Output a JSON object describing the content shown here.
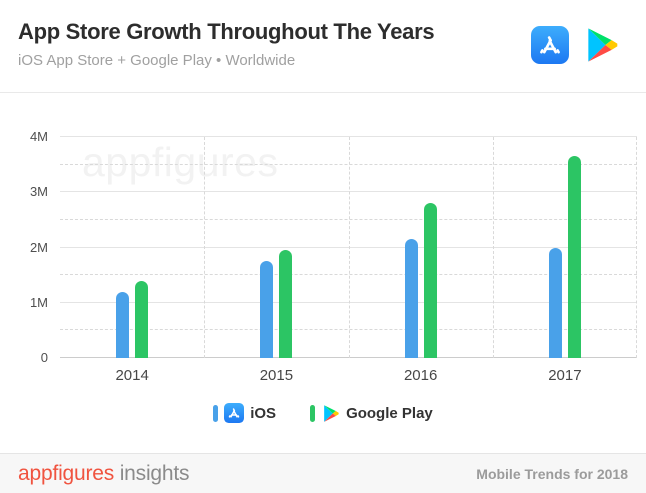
{
  "header": {
    "title": "App Store Growth Throughout The Years",
    "subtitle": "iOS App Store + Google Play • Worldwide",
    "icons": [
      "app-store-icon",
      "google-play-icon"
    ]
  },
  "chart_data": {
    "type": "bar",
    "title": "App Store Growth Throughout The Years",
    "subtitle": "iOS App Store + Google Play • Worldwide",
    "unit": "number of apps (millions)",
    "categories": [
      "2014",
      "2015",
      "2016",
      "2017"
    ],
    "series": [
      {
        "name": "iOS",
        "icon": "app-store-icon",
        "color": "#49a1e9",
        "values_millions": [
          1.2,
          1.75,
          2.15,
          2.0
        ]
      },
      {
        "name": "Google Play",
        "icon": "google-play-icon",
        "color": "#2cc564",
        "values_millions": [
          1.4,
          1.95,
          2.8,
          3.65
        ]
      }
    ],
    "ylim_millions": [
      0,
      4
    ],
    "y_tick_labels": [
      "0",
      "1M",
      "2M",
      "3M",
      "4M"
    ],
    "minor_step": 0.5,
    "grid": {
      "horizontal_major": "solid",
      "horizontal_minor": "dashed",
      "vertical_group_separators": "dashed"
    },
    "legend_position": "bottom-center",
    "watermark": "appfigures"
  },
  "footer": {
    "brand_primary": "appfigures",
    "brand_secondary": "insights",
    "right_text": "Mobile Trends for 2018"
  },
  "colors": {
    "ios_blue": "#49a1e9",
    "google_play_green": "#2cc564",
    "brand_orange": "#f0533f",
    "footer_bg": "#f7f7f7"
  }
}
